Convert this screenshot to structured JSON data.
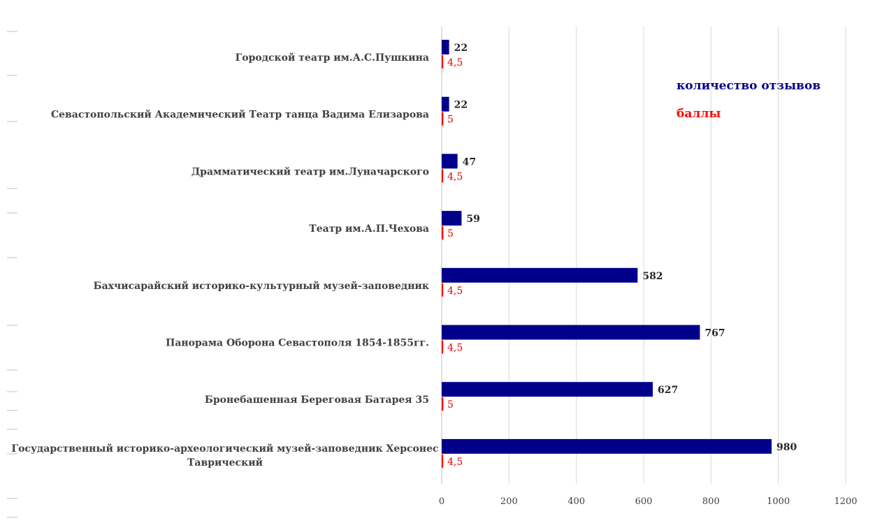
{
  "chart_data": {
    "type": "bar",
    "orientation": "horizontal",
    "categories": [
      "Городской театр им.А.С.Пушкина",
      "Севастопольский Академический Театр танца Вадима Елизарова",
      "Драмматический театр им.Луначарского",
      "Театр им.А.П.Чехова",
      "Бахчисарайский историко-культурный музей-заповедник",
      "Панорама Оборона Севастополя 1854-1855гг.",
      "Бронебашенная Береговая Батарея 35",
      "Государственный историко-археологический музей-заповедник Херсонес Таврический"
    ],
    "series": [
      {
        "name": "количество отзывов",
        "color": "#00008b",
        "values": [
          22,
          22,
          47,
          59,
          582,
          767,
          627,
          980
        ],
        "labels": [
          "22",
          "22",
          "47",
          "59",
          "582",
          "767",
          "627",
          "980"
        ]
      },
      {
        "name": "баллы",
        "color": "#ff0000",
        "values": [
          4.5,
          5,
          4.5,
          5,
          4.5,
          4.5,
          5,
          4.5
        ],
        "labels": [
          "4,5",
          "5",
          "4,5",
          "5",
          "4,5",
          "4,5",
          "5",
          "4,5"
        ]
      }
    ],
    "xlim": [
      0,
      1200
    ],
    "xticks": [
      0,
      200,
      400,
      600,
      800,
      1000,
      1200
    ],
    "grid": true,
    "legend_position": "top-right",
    "title": "",
    "xlabel": "",
    "ylabel": ""
  }
}
